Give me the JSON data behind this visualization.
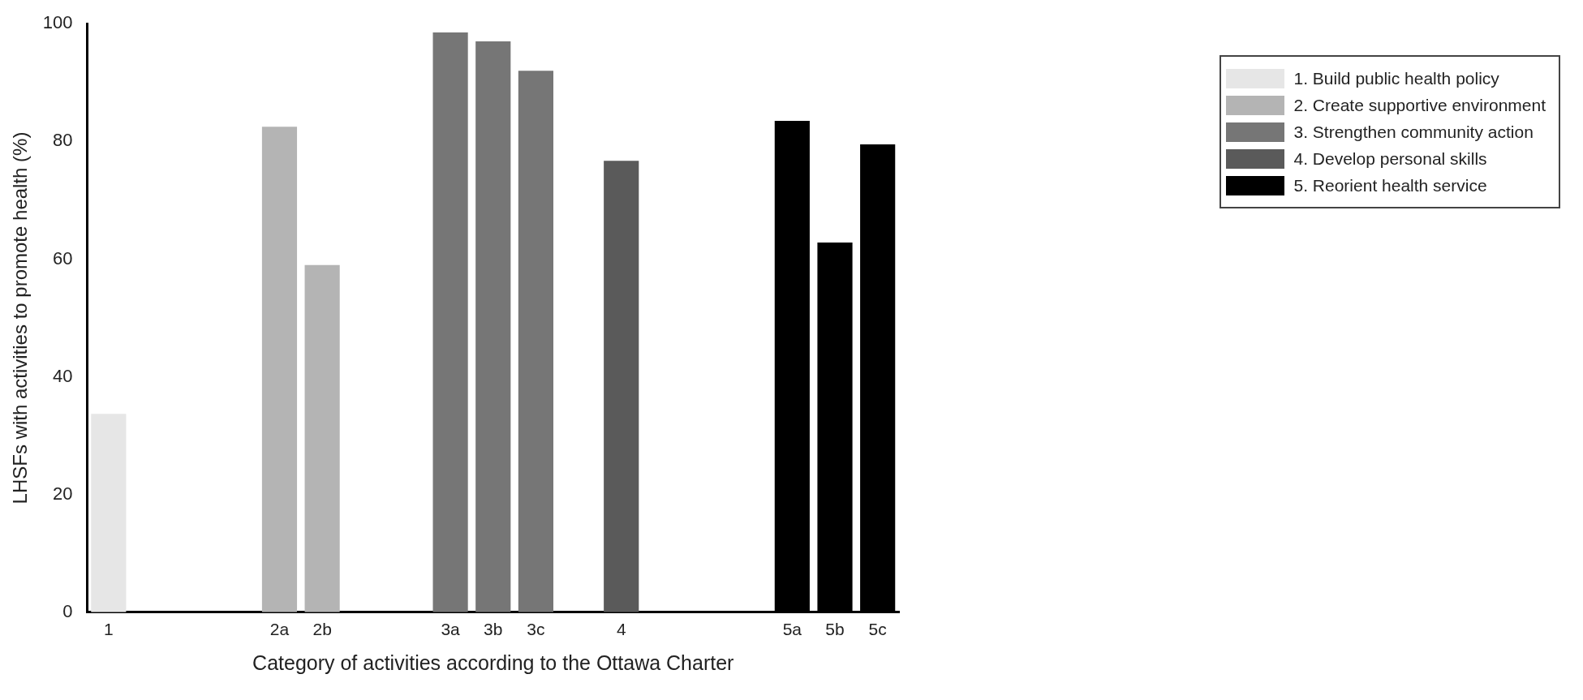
{
  "chart_data": {
    "type": "bar",
    "xlabel": "Category of activities according to the Ottawa Charter",
    "ylabel": "LHSFs with activities to promote health (%)",
    "categories": [
      "1",
      null,
      null,
      null,
      "2a",
      "2b",
      null,
      null,
      "3a",
      "3b",
      "3c",
      null,
      "4",
      null,
      null,
      null,
      "5a",
      "5b",
      "5c"
    ],
    "series": [
      {
        "name": "1. Build public health policy",
        "color": "#e6e6e6",
        "values": [
          33.7,
          null,
          null,
          null,
          null,
          null,
          null,
          null,
          null,
          null,
          null,
          null,
          null,
          null,
          null,
          null,
          null,
          null,
          null
        ]
      },
      {
        "name": "2. Create supportive environment",
        "color": "#b4b4b4",
        "values": [
          null,
          null,
          null,
          null,
          82.5,
          59,
          null,
          null,
          null,
          null,
          null,
          null,
          null,
          null,
          null,
          null,
          null,
          null,
          null
        ]
      },
      {
        "name": "3. Strengthen community action",
        "color": "#767676",
        "values": [
          null,
          null,
          null,
          null,
          null,
          null,
          null,
          null,
          98.5,
          97,
          92,
          null,
          null,
          null,
          null,
          null,
          null,
          null,
          null
        ]
      },
      {
        "name": "4. Develop personal skills",
        "color": "#5a5a5a",
        "values": [
          null,
          null,
          null,
          null,
          null,
          null,
          null,
          null,
          null,
          null,
          null,
          null,
          76.7,
          null,
          null,
          null,
          null,
          null,
          null
        ]
      },
      {
        "name": "5. Reorient health service",
        "color": "#000000",
        "values": [
          null,
          null,
          null,
          null,
          null,
          null,
          null,
          null,
          null,
          null,
          null,
          null,
          null,
          null,
          null,
          null,
          83.5,
          62.8,
          79.5
        ]
      }
    ],
    "ylim": [
      0,
      100
    ],
    "yticks": [
      0,
      20,
      40,
      60,
      80,
      100
    ],
    "grid": false,
    "legend": "top right"
  }
}
